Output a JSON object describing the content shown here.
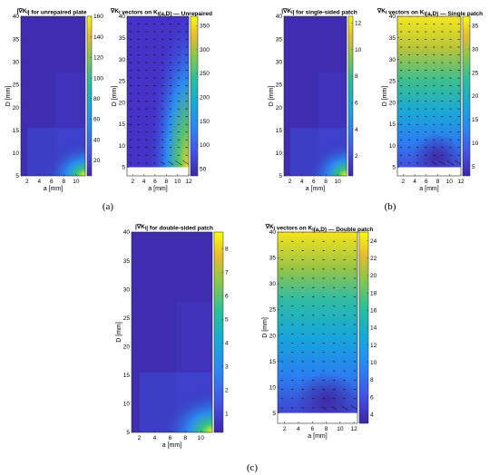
{
  "chart_data": [
    {
      "type": "heatmap",
      "title": "|∇K_I| for unrepaired plate",
      "xlabel": "a [mm]",
      "ylabel": "D [mm]",
      "xlim": [
        1,
        11.5
      ],
      "ylim": [
        5,
        40
      ],
      "xticks": [
        2,
        4,
        6,
        8,
        10
      ],
      "yticks": [
        5,
        10,
        15,
        20,
        25,
        30,
        35,
        40
      ],
      "colorbar": {
        "min": 5,
        "max": 160,
        "ticks": [
          20,
          40,
          60,
          80,
          100,
          120,
          140,
          160
        ]
      },
      "grid": false
    },
    {
      "type": "heatmap",
      "title": "∇K_I vectors on K_I(a,D) — Unrepaired",
      "xlabel": "a [mm]",
      "ylabel": "D [mm]",
      "xlim": [
        1,
        12
      ],
      "ylim": [
        3,
        40
      ],
      "xticks": [
        2,
        4,
        6,
        8,
        10,
        12
      ],
      "yticks": [
        5,
        10,
        15,
        20,
        25,
        30,
        35,
        40
      ],
      "colorbar": {
        "min": 35,
        "max": 370,
        "ticks": [
          50,
          100,
          150,
          200,
          250,
          300,
          350
        ]
      },
      "overlay": "gradient vectors (quiver)",
      "grid": false
    },
    {
      "type": "heatmap",
      "title": "|∇K_I| for single-sided patch",
      "xlabel": "a [mm]",
      "ylabel": "D [mm]",
      "xlim": [
        1,
        11.5
      ],
      "ylim": [
        5,
        40
      ],
      "xticks": [
        2,
        4,
        6,
        8,
        10
      ],
      "yticks": [
        5,
        10,
        15,
        20,
        25,
        30,
        35,
        40
      ],
      "colorbar": {
        "min": 0.5,
        "max": 12.5,
        "ticks": [
          2,
          4,
          6,
          8,
          10,
          12
        ]
      },
      "grid": false
    },
    {
      "type": "heatmap",
      "title": "∇K_I vectors on K_I(a,D) — Single patch",
      "xlabel": "a [mm]",
      "ylabel": "D [mm]",
      "xlim": [
        1,
        12
      ],
      "ylim": [
        3,
        40
      ],
      "xticks": [
        2,
        4,
        6,
        8,
        10,
        12
      ],
      "yticks": [
        5,
        10,
        15,
        20,
        25,
        30,
        35,
        40
      ],
      "colorbar": {
        "min": 3,
        "max": 37,
        "ticks": [
          5,
          10,
          15,
          20,
          25,
          30,
          35
        ]
      },
      "overlay": "gradient vectors (quiver)",
      "grid": false
    },
    {
      "type": "heatmap",
      "title": "|∇K_I| for double-sided patch",
      "xlabel": "a [mm]",
      "ylabel": "D [mm]",
      "xlim": [
        1,
        11.5
      ],
      "ylim": [
        5,
        40
      ],
      "xticks": [
        2,
        4,
        6,
        8,
        10
      ],
      "yticks": [
        5,
        10,
        15,
        20,
        25,
        30,
        35,
        40
      ],
      "colorbar": {
        "min": 0.2,
        "max": 8.7,
        "ticks": [
          1,
          2,
          3,
          4,
          5,
          6,
          7,
          8
        ]
      },
      "grid": false
    },
    {
      "type": "heatmap",
      "title": "∇K_I vectors on K_I(a,D) — Double patch",
      "xlabel": "a [mm]",
      "ylabel": "D [mm]",
      "xlim": [
        1,
        12.5
      ],
      "ylim": [
        3,
        40
      ],
      "xticks": [
        2,
        4,
        6,
        8,
        10,
        12
      ],
      "yticks": [
        5,
        10,
        15,
        20,
        25,
        30,
        35,
        40
      ],
      "colorbar": {
        "min": 3,
        "max": 25,
        "ticks": [
          4,
          6,
          8,
          10,
          12,
          14,
          16,
          18,
          20,
          22,
          24
        ]
      },
      "overlay": "gradient vectors (quiver)",
      "grid": false
    }
  ],
  "captions": [
    "(a)",
    "(b)",
    "(c)"
  ],
  "colors": {
    "low": "#3e26a8",
    "mid": "#12beb9",
    "high": "#f9fb0e"
  }
}
